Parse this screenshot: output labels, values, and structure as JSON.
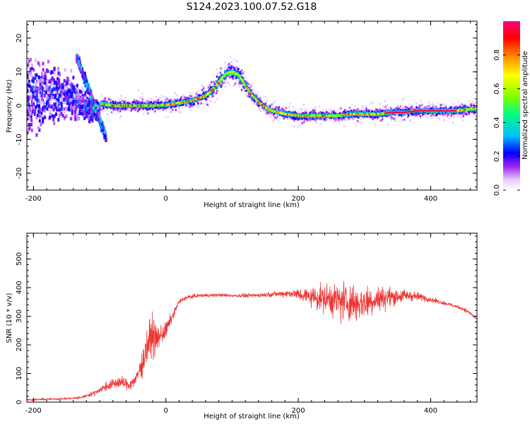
{
  "figure": {
    "title": "S124.2023.100.07.52.G18",
    "colors": {
      "snr_line": "#f03434",
      "frame": "#000000",
      "background": "#ffffff"
    }
  },
  "chart_data": [
    {
      "type": "heatmap",
      "title": "",
      "xlabel": "Height of straight line (km)",
      "ylabel": "Frequency (Hz)",
      "xlim": [
        -210,
        470
      ],
      "ylim": [
        -25,
        25
      ],
      "xticks": [
        -200,
        0,
        200,
        400
      ],
      "yticks": [
        -20,
        -10,
        0,
        10,
        20
      ],
      "grid": false,
      "colorbar": {
        "label": "Normalized spectral amplitude",
        "range": [
          0.0,
          1.0
        ],
        "ticks": [
          "0.0",
          "0.2",
          "0.4",
          "0.6",
          "0.8"
        ],
        "colormap": [
          "#ffffff",
          "#e6ccff",
          "#a020f0",
          "#0000ff",
          "#00bfff",
          "#00ff80",
          "#7fff00",
          "#ffff00",
          "#ff8000",
          "#ff0000",
          "#ff0080"
        ]
      },
      "ridge": {
        "x": [
          -95,
          -80,
          -60,
          -40,
          -20,
          0,
          20,
          40,
          60,
          70,
          80,
          90,
          100,
          110,
          120,
          130,
          140,
          150,
          160,
          170,
          180,
          200,
          220,
          240,
          260,
          280,
          300,
          320,
          340,
          360,
          380,
          400,
          420,
          440,
          460,
          470
        ],
        "freq": [
          0.5,
          0,
          0,
          0,
          0,
          0.2,
          0.8,
          1.5,
          3,
          4.5,
          7,
          9.5,
          10,
          9,
          6,
          3,
          1,
          -0.5,
          -1.5,
          -2,
          -2.5,
          -3,
          -3,
          -3,
          -3,
          -2.5,
          -2.5,
          -2.5,
          -2,
          -2,
          -1.5,
          -1.5,
          -1.5,
          -1.5,
          -1,
          -1
        ]
      },
      "scatter_band": {
        "x_range": [
          -210,
          -100
        ],
        "freq_range": [
          -25,
          25
        ]
      }
    },
    {
      "type": "line",
      "title": "",
      "xlabel": "Height of straight line (km)",
      "ylabel": "SNR (10 * v/v)",
      "xlim": [
        -210,
        470
      ],
      "ylim": [
        0,
        590
      ],
      "xticks": [
        -200,
        0,
        200,
        400
      ],
      "yticks": [
        0,
        100,
        200,
        300,
        400,
        500
      ],
      "grid": false,
      "series": [
        {
          "x": [
            -210,
            -180,
            -150,
            -130,
            -110,
            -90,
            -70,
            -55,
            -45,
            -35,
            -28,
            -20,
            -15,
            -10,
            0,
            10,
            20,
            30,
            50,
            80,
            100,
            130,
            150,
            170,
            190,
            210,
            230,
            250,
            270,
            290,
            310,
            330,
            350,
            370,
            390,
            410,
            430,
            450,
            460,
            470
          ],
          "values": [
            8,
            10,
            12,
            15,
            30,
            55,
            70,
            60,
            80,
            140,
            200,
            240,
            210,
            230,
            250,
            300,
            350,
            365,
            372,
            374,
            372,
            372,
            375,
            378,
            380,
            372,
            365,
            360,
            350,
            345,
            355,
            365,
            370,
            372,
            365,
            352,
            340,
            325,
            310,
            290
          ],
          "spread": [
            6,
            6,
            6,
            8,
            12,
            25,
            35,
            30,
            40,
            80,
            110,
            120,
            90,
            60,
            50,
            25,
            15,
            12,
            10,
            10,
            10,
            12,
            12,
            15,
            25,
            45,
            70,
            95,
            120,
            110,
            90,
            65,
            45,
            30,
            20,
            12,
            10,
            10,
            10,
            10
          ]
        }
      ]
    }
  ]
}
